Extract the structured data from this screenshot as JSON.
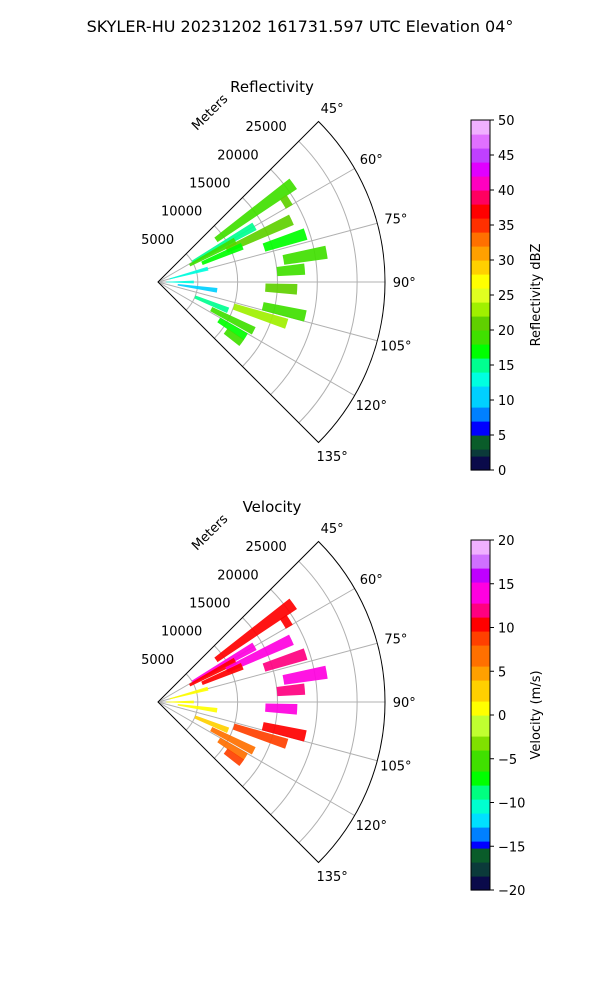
{
  "figure": {
    "suptitle": "SKYLER-HU  20231202  161731.597 UTC Elevation 04°"
  },
  "chart_data": [
    {
      "type": "radar-ppi",
      "title": "Reflectivity",
      "radial_label": "Meters",
      "range_ticks": [
        "5000",
        "10000",
        "15000",
        "20000",
        "25000"
      ],
      "range_tick_values": [
        5000,
        10000,
        15000,
        20000,
        25000
      ],
      "azimuth_range_deg": [
        45,
        135
      ],
      "azimuth_ticks": [
        "45°",
        "60°",
        "75°",
        "90°",
        "105°",
        "120°",
        "135°"
      ],
      "azimuth_tick_values": [
        45,
        60,
        75,
        90,
        105,
        120,
        135
      ],
      "grid": true,
      "colorbar": {
        "label": "Reflectivity dBZ",
        "range": [
          0,
          50
        ],
        "ticks": [
          "0",
          "5",
          "10",
          "15",
          "20",
          "25",
          "30",
          "35",
          "40",
          "45",
          "50"
        ],
        "tick_values": [
          0,
          5,
          10,
          15,
          20,
          25,
          30,
          35,
          40,
          45,
          50
        ]
      },
      "echoes": [
        {
          "az": 54,
          "r0": 9000,
          "r1": 21000,
          "value": 18
        },
        {
          "az": 58,
          "r0": 18500,
          "r1": 19500,
          "value": 20
        },
        {
          "az": 60,
          "r0": 5000,
          "r1": 14000,
          "value": 15
        },
        {
          "az": 62,
          "r0": 4500,
          "r1": 11000,
          "value": 19
        },
        {
          "az": 65,
          "r0": 9500,
          "r1": 18500,
          "value": 20
        },
        {
          "az": 67,
          "r0": 6000,
          "r1": 11500,
          "value": 17
        },
        {
          "az": 72,
          "r0": 14000,
          "r1": 19500,
          "value": 16
        },
        {
          "az": 75,
          "r0": 1500,
          "r1": 6500,
          "value": 13
        },
        {
          "az": 80,
          "r0": 16000,
          "r1": 21500,
          "value": 18
        },
        {
          "az": 85,
          "r0": 15000,
          "r1": 18500,
          "value": 19
        },
        {
          "az": 90,
          "r0": 1000,
          "r1": 4500,
          "value": 12
        },
        {
          "az": 93,
          "r0": 13500,
          "r1": 17500,
          "value": 20
        },
        {
          "az": 98,
          "r0": 2500,
          "r1": 7500,
          "value": 11
        },
        {
          "az": 103,
          "r0": 13500,
          "r1": 19000,
          "value": 19
        },
        {
          "az": 108,
          "r0": 10000,
          "r1": 17000,
          "value": 22
        },
        {
          "az": 112,
          "r0": 5000,
          "r1": 9500,
          "value": 14
        },
        {
          "az": 117,
          "r0": 7500,
          "r1": 13500,
          "value": 18
        },
        {
          "az": 122,
          "r0": 9000,
          "r1": 13000,
          "value": 17
        },
        {
          "az": 126,
          "r0": 10500,
          "r1": 13000,
          "value": 19
        }
      ]
    },
    {
      "type": "radar-ppi",
      "title": "Velocity",
      "radial_label": "Meters",
      "range_ticks": [
        "5000",
        "10000",
        "15000",
        "20000",
        "25000"
      ],
      "range_tick_values": [
        5000,
        10000,
        15000,
        20000,
        25000
      ],
      "azimuth_range_deg": [
        45,
        135
      ],
      "azimuth_ticks": [
        "45°",
        "60°",
        "75°",
        "90°",
        "105°",
        "120°",
        "135°"
      ],
      "azimuth_tick_values": [
        45,
        60,
        75,
        90,
        105,
        120,
        135
      ],
      "grid": true,
      "colorbar": {
        "label": "Velocity (m/s)",
        "range": [
          -20,
          20
        ],
        "ticks": [
          "−20",
          "−15",
          "−10",
          "−5",
          "0",
          "5",
          "10",
          "15",
          "20"
        ],
        "tick_values": [
          -20,
          -15,
          -10,
          -5,
          0,
          5,
          10,
          15,
          20
        ]
      },
      "echoes": [
        {
          "az": 54,
          "r0": 9000,
          "r1": 21000,
          "value": 11
        },
        {
          "az": 58,
          "r0": 18500,
          "r1": 19500,
          "value": 11
        },
        {
          "az": 60,
          "r0": 5000,
          "r1": 14000,
          "value": 13
        },
        {
          "az": 62,
          "r0": 4500,
          "r1": 11000,
          "value": 10
        },
        {
          "az": 65,
          "r0": 9500,
          "r1": 18500,
          "value": 13
        },
        {
          "az": 67,
          "r0": 6000,
          "r1": 11500,
          "value": 11
        },
        {
          "az": 72,
          "r0": 14000,
          "r1": 19500,
          "value": 12
        },
        {
          "az": 75,
          "r0": 1500,
          "r1": 6500,
          "value": 1
        },
        {
          "az": 80,
          "r0": 16000,
          "r1": 21500,
          "value": 13
        },
        {
          "az": 85,
          "r0": 15000,
          "r1": 18500,
          "value": 12
        },
        {
          "az": 90,
          "r0": 1000,
          "r1": 4500,
          "value": 1
        },
        {
          "az": 93,
          "r0": 13500,
          "r1": 17500,
          "value": 13
        },
        {
          "az": 98,
          "r0": 2500,
          "r1": 7500,
          "value": 1
        },
        {
          "az": 103,
          "r0": 13500,
          "r1": 19000,
          "value": 10
        },
        {
          "az": 108,
          "r0": 10000,
          "r1": 17000,
          "value": 9
        },
        {
          "az": 112,
          "r0": 5000,
          "r1": 9500,
          "value": 2
        },
        {
          "az": 117,
          "r0": 7500,
          "r1": 13500,
          "value": 6
        },
        {
          "az": 122,
          "r0": 9000,
          "r1": 13000,
          "value": 7
        },
        {
          "az": 126,
          "r0": 10500,
          "r1": 13000,
          "value": 8
        }
      ]
    }
  ]
}
